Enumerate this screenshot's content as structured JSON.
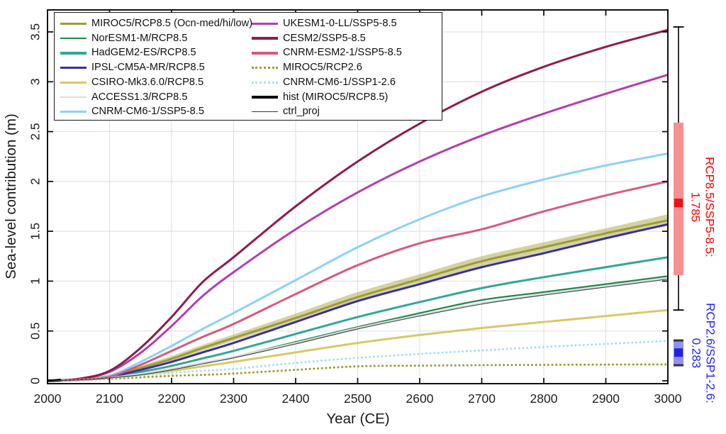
{
  "figure": {
    "xlabel": "Year (CE)",
    "ylabel": "Sea-level contribution (m)"
  },
  "chart_data": {
    "type": "line",
    "title": "",
    "xlabel": "Year (CE)",
    "ylabel": "Sea-level contribution (m)",
    "xlim": [
      2000,
      3000
    ],
    "ylim": [
      0,
      3.72
    ],
    "grid": true,
    "legend_position": "top-left",
    "legend_columns": 2,
    "xticks": [
      2000,
      2100,
      2200,
      2300,
      2400,
      2500,
      2600,
      2700,
      2800,
      2900,
      3000
    ],
    "xtick_labels": [
      "2000",
      "2100",
      "2200",
      "2300",
      "2400",
      "2500",
      "2600",
      "2700",
      "2800",
      "2900",
      "3000"
    ],
    "yticks": [
      0,
      0.5,
      1,
      1.5,
      2,
      2.5,
      3,
      3.5
    ],
    "ytick_labels": [
      "0",
      "0.5",
      "1",
      "1.5",
      "2",
      "2.5",
      "3",
      "3.5"
    ],
    "x": [
      2000,
      2050,
      2100,
      2150,
      2200,
      2250,
      2300,
      2400,
      2500,
      2600,
      2700,
      2800,
      2900,
      3000
    ],
    "band": {
      "name": "MIROC5/RCP8.5 Ocn hi-low range",
      "color": "#9c9c35",
      "opacity": 0.45,
      "hi": [
        0,
        0.012,
        0.06,
        0.15,
        0.25,
        0.36,
        0.465,
        0.675,
        0.89,
        1.07,
        1.25,
        1.39,
        1.53,
        1.67
      ],
      "lo": [
        0,
        0.008,
        0.045,
        0.115,
        0.195,
        0.3,
        0.4,
        0.595,
        0.8,
        0.97,
        1.15,
        1.29,
        1.43,
        1.555
      ]
    },
    "series": [
      {
        "name": "MIROC5/RCP8.5 (Ocn-med/hi/low)",
        "color": "#9c9c35",
        "style": "solid",
        "width": 3,
        "values": [
          0,
          0.01,
          0.05,
          0.13,
          0.22,
          0.33,
          0.43,
          0.63,
          0.84,
          1.02,
          1.2,
          1.34,
          1.48,
          1.61
        ]
      },
      {
        "name": "NorESM1-M/RCP8.5",
        "color": "#1e8a4a",
        "style": "solid",
        "width": 2.2,
        "values": [
          0,
          0.01,
          0.03,
          0.07,
          0.12,
          0.18,
          0.24,
          0.39,
          0.54,
          0.68,
          0.81,
          0.89,
          0.97,
          1.05
        ]
      },
      {
        "name": "HadGEM2-ES/RCP8.5",
        "color": "#33a695",
        "style": "solid",
        "width": 3,
        "values": [
          0,
          0.01,
          0.04,
          0.09,
          0.15,
          0.225,
          0.3,
          0.47,
          0.64,
          0.79,
          0.93,
          1.04,
          1.14,
          1.24
        ]
      },
      {
        "name": "IPSL-CM5A-MR/RCP8.5",
        "color": "#3a2fa0",
        "style": "solid",
        "width": 3,
        "values": [
          0,
          0.01,
          0.04,
          0.11,
          0.19,
          0.285,
          0.38,
          0.59,
          0.8,
          0.97,
          1.14,
          1.28,
          1.43,
          1.57
        ]
      },
      {
        "name": "CSIRO-Mk3.6.0/RCP8.5",
        "color": "#d9c868",
        "style": "solid",
        "width": 3,
        "values": [
          0,
          0.01,
          0.03,
          0.06,
          0.1,
          0.145,
          0.19,
          0.285,
          0.38,
          0.46,
          0.53,
          0.59,
          0.65,
          0.71
        ]
      },
      {
        "name": "ACCESS1.3/RCP8.5",
        "color": "#dcdcdc",
        "style": "solid",
        "width": 2.6,
        "values": [
          0,
          0.01,
          0.03,
          0.07,
          0.12,
          0.18,
          0.24,
          0.38,
          0.53,
          0.66,
          0.78,
          0.87,
          0.95,
          1.03
        ]
      },
      {
        "name": "CNRM-CM6-1/SSP5-8.5",
        "color": "#8dd2f0",
        "style": "solid",
        "width": 3,
        "values": [
          0,
          0.01,
          0.05,
          0.19,
          0.35,
          0.52,
          0.68,
          1.01,
          1.34,
          1.62,
          1.85,
          2.02,
          2.16,
          2.28
        ]
      },
      {
        "name": "UKESM1-0-LL/SSP5-8.5",
        "color": "#b33fab",
        "style": "solid",
        "width": 3,
        "values": [
          0,
          0.02,
          0.09,
          0.28,
          0.55,
          0.85,
          1.09,
          1.52,
          1.89,
          2.2,
          2.46,
          2.68,
          2.88,
          3.07
        ]
      },
      {
        "name": "CESM2/SSP5-8.5",
        "color": "#8c1d4f",
        "style": "solid",
        "width": 3,
        "values": [
          0,
          0.02,
          0.1,
          0.33,
          0.64,
          0.99,
          1.24,
          1.75,
          2.2,
          2.58,
          2.9,
          3.15,
          3.35,
          3.52
        ]
      },
      {
        "name": "CNRM-ESM2-1/SSP5-8.5",
        "color": "#d65a7d",
        "style": "solid",
        "width": 3,
        "values": [
          0,
          0.01,
          0.04,
          0.16,
          0.3,
          0.44,
          0.57,
          0.87,
          1.16,
          1.38,
          1.52,
          1.7,
          1.86,
          2.0
        ]
      },
      {
        "name": "MIROC5/RCP2.6",
        "color": "#9c9c35",
        "style": "dotted",
        "width": 3,
        "values": [
          0,
          0.005,
          0.02,
          0.035,
          0.05,
          0.06,
          0.073,
          0.11,
          0.145,
          0.152,
          0.157,
          0.16,
          0.163,
          0.165
        ]
      },
      {
        "name": "CNRM-CM6-1/SSP1-2.6",
        "color": "#a9def4",
        "style": "dotted",
        "width": 3,
        "values": [
          0,
          0.01,
          0.03,
          0.055,
          0.08,
          0.1,
          0.12,
          0.18,
          0.23,
          0.27,
          0.305,
          0.34,
          0.37,
          0.4
        ]
      },
      {
        "name": "hist (MIROC5/RCP8.5)",
        "color": "#000000",
        "style": "solid",
        "width": 3.5,
        "x": [
          2000,
          2010,
          2020
        ],
        "values": [
          0,
          0.003,
          0.008
        ]
      },
      {
        "name": "ctrl_proj",
        "color": "#3a3a3a",
        "style": "solid",
        "width": 1.1,
        "values": [
          0,
          0.01,
          0.03,
          0.06,
          0.11,
          0.17,
          0.23,
          0.37,
          0.52,
          0.65,
          0.77,
          0.86,
          0.94,
          1.02
        ]
      }
    ],
    "error_bars": [
      {
        "label": "RCP8.5/SSP5-8.5:",
        "value_label": "1.785",
        "center": 1.785,
        "box_lo": 1.06,
        "box_hi": 2.59,
        "whisker_lo": 0.71,
        "whisker_hi": 3.55,
        "box_color": "#f99090",
        "marker_color": "#ee1111",
        "text_color": "#ff0000"
      },
      {
        "label": "RCP2.6/SSP1-2.6:",
        "value_label": "0.283",
        "center": 0.283,
        "box_lo": 0.156,
        "box_hi": 0.405,
        "whisker_lo": null,
        "whisker_hi": null,
        "box_color": "#9191f2",
        "marker_color": "#2222dd",
        "text_color": "#2222ff"
      }
    ],
    "grid_color": "#dedede",
    "axis_color": "#111111"
  }
}
